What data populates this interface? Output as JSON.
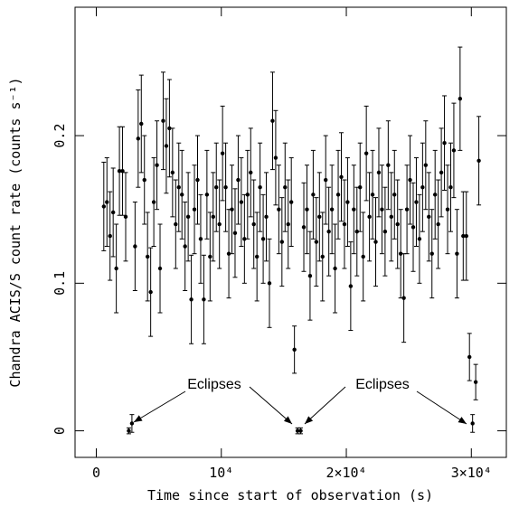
{
  "chart_data": {
    "type": "scatter",
    "xlabel": "Time since start of observation (s)",
    "ylabel": "Chandra ACIS/S count rate (counts s⁻¹)",
    "color": "#000000",
    "xlim": [
      -1700,
      32800
    ],
    "ylim": [
      -0.018,
      0.287
    ],
    "xticks": [
      0,
      {
        "value": 10000,
        "label": "10⁴"
      },
      {
        "value": 20000,
        "label": "2×10⁴"
      },
      {
        "value": 30000,
        "label": "3×10⁴"
      }
    ],
    "yticks": [
      0,
      0.1,
      0.2
    ],
    "annotations": [
      "Eclipses",
      "Eclipses"
    ],
    "series": [
      {
        "x": [
          600,
          850,
          1100,
          1350,
          1600,
          1850,
          2100,
          2350,
          2600,
          2850,
          3100,
          3350,
          3600,
          3850,
          4100,
          4350,
          4600,
          4850,
          5100,
          5350,
          5600,
          5850,
          6100,
          6350,
          6600,
          6850,
          7100,
          7350,
          7600,
          7850,
          8100,
          8350,
          8600,
          8850,
          9100,
          9350,
          9600,
          9850,
          10100,
          10350,
          10600,
          10850,
          11100,
          11350,
          11600,
          11850,
          12100,
          12350,
          12600,
          12850,
          13100,
          13350,
          13600,
          13850,
          14100,
          14350,
          14600,
          14850,
          15100,
          15350,
          15600,
          15850,
          16100,
          16350,
          16600,
          16850,
          17100,
          17350,
          17600,
          17850,
          18100,
          18350,
          18600,
          18850,
          19100,
          19350,
          19600,
          19850,
          20100,
          20350,
          20600,
          20850,
          21100,
          21350,
          21600,
          21850,
          22100,
          22350,
          22600,
          22850,
          23100,
          23350,
          23600,
          23850,
          24100,
          24350,
          24600,
          24850,
          25100,
          25350,
          25600,
          25850,
          26100,
          26350,
          26600,
          26850,
          27100,
          27350,
          27600,
          27850,
          28100,
          28350,
          28600,
          28850,
          29100,
          29350,
          29600,
          29850,
          30100,
          30350,
          30600
        ],
        "values": [
          0.152,
          0.155,
          0.132,
          0.148,
          0.11,
          0.176,
          0.176,
          0.145,
          0.0,
          0.005,
          0.125,
          0.198,
          0.208,
          0.17,
          0.118,
          0.094,
          0.155,
          0.18,
          0.11,
          0.21,
          0.193,
          0.205,
          0.175,
          0.14,
          0.165,
          0.16,
          0.125,
          0.145,
          0.089,
          0.15,
          0.17,
          0.13,
          0.089,
          0.16,
          0.118,
          0.145,
          0.165,
          0.14,
          0.188,
          0.165,
          0.12,
          0.15,
          0.134,
          0.17,
          0.155,
          0.13,
          0.16,
          0.175,
          0.14,
          0.118,
          0.165,
          0.13,
          0.145,
          0.1,
          0.21,
          0.185,
          0.15,
          0.128,
          0.165,
          0.14,
          0.155,
          0.055,
          0.0,
          0.0,
          0.138,
          0.15,
          0.105,
          0.16,
          0.128,
          0.145,
          0.118,
          0.17,
          0.135,
          0.15,
          0.11,
          0.16,
          0.172,
          0.14,
          0.155,
          0.098,
          0.15,
          0.135,
          0.165,
          0.118,
          0.188,
          0.145,
          0.16,
          0.128,
          0.175,
          0.15,
          0.135,
          0.18,
          0.145,
          0.16,
          0.14,
          0.12,
          0.09,
          0.15,
          0.17,
          0.138,
          0.155,
          0.13,
          0.165,
          0.18,
          0.145,
          0.12,
          0.16,
          0.14,
          0.175,
          0.195,
          0.15,
          0.165,
          0.19,
          0.12,
          0.225,
          0.132,
          0.132,
          0.05,
          0.005,
          0.033,
          0.183
        ],
        "errors": [
          0.03,
          0.03,
          0.03,
          0.03,
          0.03,
          0.03,
          0.03,
          0.03,
          0.002,
          0.006,
          0.03,
          0.033,
          0.033,
          0.03,
          0.03,
          0.03,
          0.03,
          0.03,
          0.03,
          0.033,
          0.032,
          0.033,
          0.03,
          0.03,
          0.03,
          0.03,
          0.03,
          0.03,
          0.03,
          0.03,
          0.03,
          0.03,
          0.03,
          0.03,
          0.03,
          0.03,
          0.03,
          0.03,
          0.032,
          0.03,
          0.03,
          0.03,
          0.03,
          0.03,
          0.03,
          0.03,
          0.03,
          0.03,
          0.03,
          0.03,
          0.03,
          0.03,
          0.03,
          0.03,
          0.033,
          0.032,
          0.03,
          0.03,
          0.03,
          0.03,
          0.03,
          0.016,
          0.002,
          0.002,
          0.03,
          0.03,
          0.03,
          0.03,
          0.03,
          0.03,
          0.03,
          0.03,
          0.03,
          0.03,
          0.03,
          0.03,
          0.03,
          0.03,
          0.03,
          0.03,
          0.03,
          0.03,
          0.03,
          0.03,
          0.032,
          0.03,
          0.03,
          0.03,
          0.03,
          0.03,
          0.03,
          0.03,
          0.03,
          0.03,
          0.03,
          0.03,
          0.03,
          0.03,
          0.03,
          0.03,
          0.03,
          0.03,
          0.03,
          0.03,
          0.03,
          0.03,
          0.03,
          0.03,
          0.03,
          0.032,
          0.03,
          0.03,
          0.032,
          0.03,
          0.035,
          0.03,
          0.03,
          0.016,
          0.006,
          0.012,
          0.03
        ]
      }
    ]
  }
}
